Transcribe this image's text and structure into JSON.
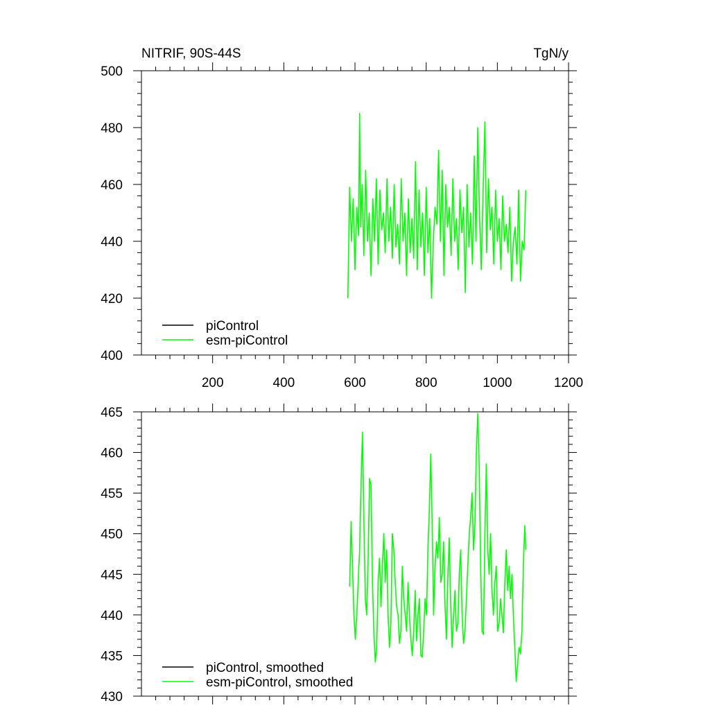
{
  "chart_data": [
    {
      "type": "line",
      "title": "NITRIF, 90S-44S",
      "units_label": "TgN/y",
      "xlabel": "",
      "ylabel": "",
      "xlim": [
        0,
        1200
      ],
      "ylim": [
        400,
        500
      ],
      "x_ticks": [
        200,
        400,
        600,
        800,
        1000,
        1200
      ],
      "y_ticks": [
        400,
        420,
        440,
        460,
        480,
        500
      ],
      "legend": {
        "placement": "bottom-left",
        "entries": [
          "piControl",
          "esm-piControl"
        ]
      },
      "series": [
        {
          "name": "piControl",
          "color": "#000000",
          "x": [],
          "y": []
        },
        {
          "name": "esm-piControl",
          "color": "#00ff00",
          "x": [
            580,
            585,
            590,
            595,
            600,
            605,
            610,
            613,
            616,
            620,
            625,
            630,
            635,
            640,
            645,
            650,
            655,
            660,
            665,
            670,
            675,
            680,
            685,
            690,
            695,
            700,
            705,
            710,
            715,
            720,
            725,
            730,
            735,
            740,
            745,
            750,
            755,
            760,
            765,
            770,
            775,
            780,
            785,
            790,
            795,
            800,
            805,
            810,
            815,
            820,
            825,
            830,
            835,
            840,
            845,
            850,
            855,
            860,
            865,
            870,
            875,
            880,
            885,
            890,
            895,
            900,
            905,
            910,
            915,
            920,
            925,
            930,
            935,
            940,
            945,
            950,
            955,
            960,
            965,
            970,
            975,
            980,
            985,
            990,
            995,
            1000,
            1005,
            1010,
            1015,
            1020,
            1025,
            1030,
            1035,
            1040,
            1045,
            1050,
            1055,
            1060,
            1065,
            1070,
            1075,
            1080
          ],
          "y": [
            420,
            459,
            440,
            455,
            430,
            452,
            442,
            485,
            445,
            460,
            435,
            465,
            440,
            450,
            428,
            455,
            440,
            462,
            432,
            458,
            444,
            450,
            436,
            462,
            440,
            452,
            434,
            460,
            438,
            446,
            432,
            462,
            440,
            450,
            428,
            455,
            436,
            448,
            434,
            468,
            430,
            458,
            438,
            450,
            428,
            459,
            436,
            448,
            420,
            440,
            452,
            446,
            472,
            440,
            465,
            428,
            460,
            445,
            452,
            435,
            462,
            440,
            448,
            430,
            458,
            443,
            452,
            422,
            460,
            438,
            450,
            432,
            470,
            440,
            480,
            448,
            430,
            458,
            482,
            436,
            462,
            444,
            452,
            432,
            458,
            440,
            448,
            430,
            456,
            440,
            446,
            436,
            452,
            426,
            440,
            445,
            432,
            458,
            426,
            440,
            437,
            458
          ]
        }
      ]
    },
    {
      "type": "line",
      "title": "",
      "xlabel": "",
      "ylabel": "",
      "xlim": [
        0,
        1200
      ],
      "ylim": [
        430,
        465
      ],
      "x_ticks": [
        200,
        400,
        600,
        800,
        1000,
        1200
      ],
      "y_ticks": [
        430,
        435,
        440,
        445,
        450,
        455,
        460,
        465
      ],
      "legend": {
        "placement": "bottom-left",
        "entries": [
          "piControl, smoothed",
          "esm-piControl, smoothed"
        ]
      },
      "series": [
        {
          "name": "piControl, smoothed",
          "color": "#000000",
          "x": [],
          "y": []
        },
        {
          "name": "esm-piControl, smoothed",
          "color": "#00ff00",
          "x": [
            585,
            589,
            593,
            597,
            601,
            605,
            609,
            613,
            617,
            621,
            625,
            629,
            633,
            637,
            641,
            645,
            649,
            653,
            657,
            661,
            665,
            669,
            673,
            677,
            681,
            685,
            689,
            693,
            697,
            701,
            705,
            709,
            713,
            717,
            721,
            725,
            729,
            733,
            737,
            741,
            745,
            749,
            753,
            757,
            761,
            765,
            769,
            773,
            777,
            781,
            785,
            789,
            793,
            797,
            801,
            805,
            809,
            813,
            817,
            821,
            825,
            829,
            833,
            837,
            841,
            845,
            849,
            853,
            857,
            861,
            865,
            869,
            873,
            877,
            881,
            885,
            889,
            893,
            897,
            901,
            905,
            909,
            913,
            917,
            921,
            925,
            929,
            933,
            937,
            941,
            945,
            949,
            953,
            957,
            961,
            965,
            969,
            973,
            977,
            981,
            985,
            989,
            993,
            997,
            1001,
            1005,
            1009,
            1013,
            1017,
            1021,
            1025,
            1029,
            1033,
            1037,
            1041,
            1045,
            1049,
            1053,
            1057,
            1061,
            1065,
            1069,
            1073,
            1077,
            1080
          ],
          "y": [
            443.5,
            451.5,
            446,
            440,
            437,
            440,
            444,
            448,
            456,
            462.5,
            452,
            442,
            440,
            447,
            456.8,
            456,
            444,
            438,
            434.2,
            436,
            444,
            447,
            441,
            446,
            450,
            444,
            448,
            440,
            436,
            439,
            450,
            448,
            444,
            441,
            440,
            436.5,
            438,
            446,
            442,
            440,
            438,
            444,
            440,
            437,
            435,
            438,
            443,
            436.8,
            440,
            442,
            435,
            434.8,
            438,
            442,
            440,
            448,
            453,
            459.8,
            451,
            440,
            446,
            449,
            447,
            452,
            444,
            445,
            449,
            441,
            437,
            445,
            449.5,
            441,
            436,
            440,
            443,
            438,
            439,
            445,
            448,
            440,
            436.5,
            438,
            442,
            446,
            450,
            452,
            455,
            448,
            451,
            460,
            464.8,
            458,
            446,
            438,
            437.6,
            450,
            458.6,
            448,
            445,
            450,
            443,
            440,
            444,
            446,
            438,
            439,
            442,
            440,
            437.8,
            444,
            448,
            443,
            446,
            442,
            445,
            440,
            436,
            431.8,
            434,
            436,
            435.2,
            438,
            446,
            451,
            448
          ]
        }
      ]
    }
  ]
}
